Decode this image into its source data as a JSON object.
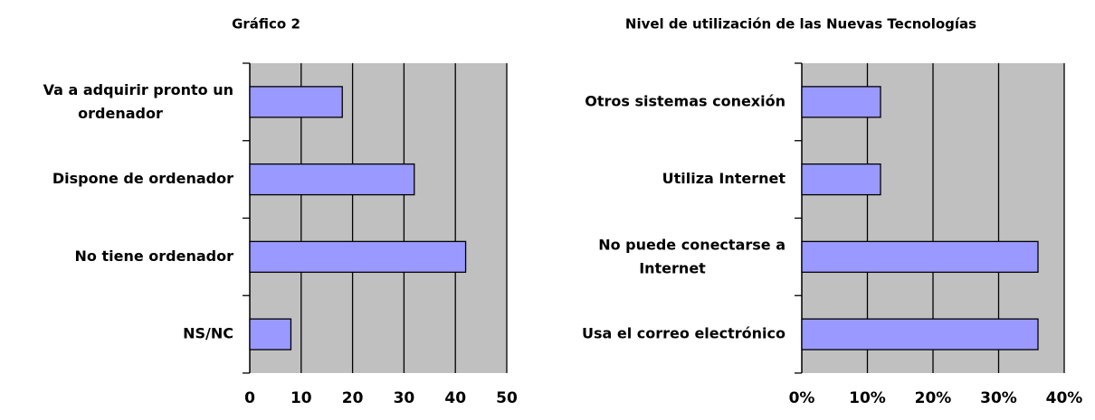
{
  "chart_data": [
    {
      "type": "bar",
      "orientation": "horizontal",
      "title": "Gráfico 2",
      "categories": [
        "Va a adquirir pronto un ordenador",
        "Dispone de ordenador",
        "No tiene ordenador",
        "NS/NC"
      ],
      "values": [
        18,
        32,
        42,
        8
      ],
      "color": "#9999ff",
      "xlim": [
        0,
        50
      ],
      "xticks": [
        0,
        10,
        20,
        30,
        40,
        50
      ],
      "grid": true
    },
    {
      "type": "bar",
      "orientation": "horizontal",
      "title": "Nivel de utilización de las Nuevas Tecnologías",
      "categories": [
        "Otros sistemas conexión",
        "Utiliza Internet",
        "No puede conectarse a Internet",
        "Usa el correo electrónico"
      ],
      "values": [
        12,
        12,
        36,
        36
      ],
      "color": "#9999ff",
      "xlim": [
        0,
        40
      ],
      "xticks": [
        {
          "value": 0,
          "label": "0%"
        },
        {
          "value": 10,
          "label": "10%"
        },
        {
          "value": 20,
          "label": "20%"
        },
        {
          "value": 30,
          "label": "30%"
        },
        {
          "value": 40,
          "label": "40%"
        }
      ],
      "grid": true
    }
  ]
}
